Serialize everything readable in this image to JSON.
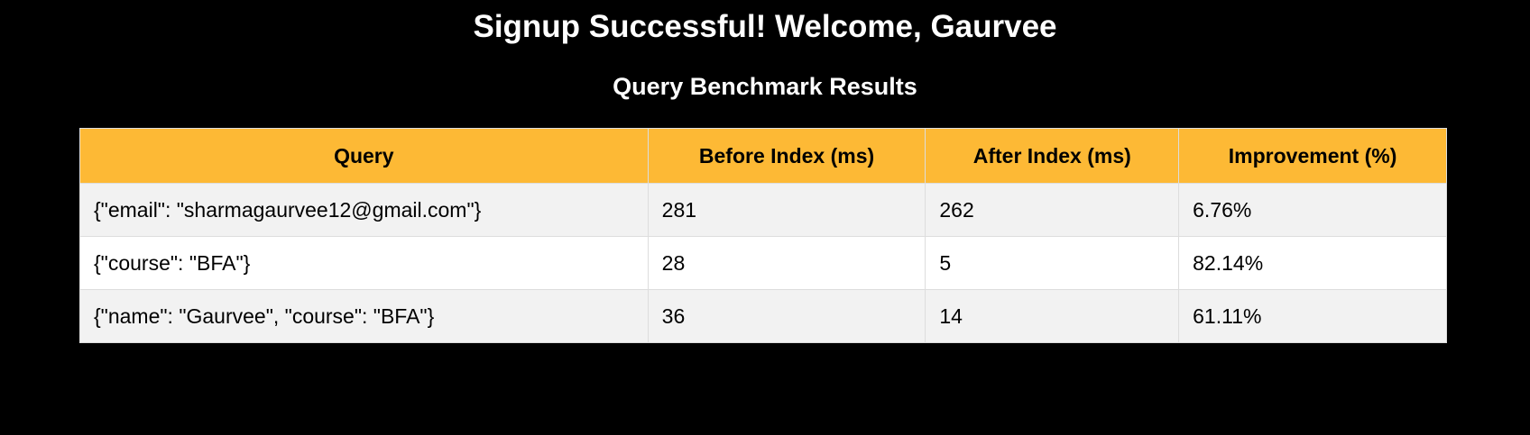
{
  "header": {
    "title": "Signup Successful! Welcome, Gaurvee",
    "subtitle": "Query Benchmark Results"
  },
  "table": {
    "columns": [
      "Query",
      "Before Index (ms)",
      "After Index (ms)",
      "Improvement (%)"
    ],
    "rows": [
      [
        "{\"email\": \"sharmagaurvee12@gmail.com\"}",
        "281",
        "262",
        "6.76%"
      ],
      [
        "{\"course\": \"BFA\"}",
        "28",
        "5",
        "82.14%"
      ],
      [
        "{\"name\": \"Gaurvee\", \"course\": \"BFA\"}",
        "36",
        "14",
        "61.11%"
      ]
    ]
  },
  "colors": {
    "background": "#000000",
    "header_row": "#fdb935",
    "row_alt": "#f2f2f2",
    "row": "#ffffff"
  }
}
